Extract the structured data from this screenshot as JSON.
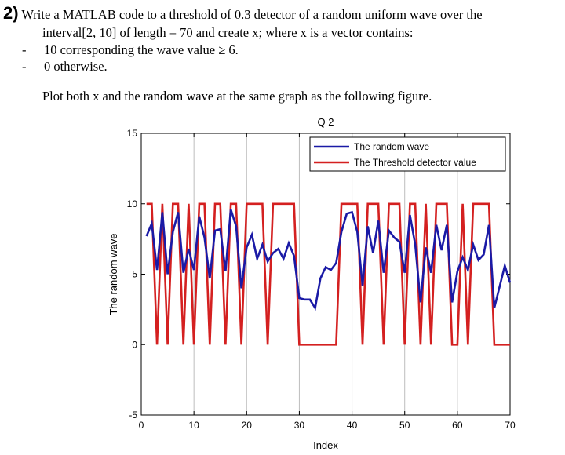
{
  "question": {
    "number": "2)",
    "line1": "Write a MATLAB code to a threshold of 0.3 detector of a random uniform wave over the",
    "line2": "interval[2, 10] of length = 70 and create x; where x is a vector contains:",
    "bullets": [
      {
        "marker": "-",
        "text": "10 corresponding the wave value ≥ 6."
      },
      {
        "marker": "-",
        "text": "0 otherwise."
      }
    ],
    "instruction": "Plot both x and the random wave at the same graph as the following figure."
  },
  "chart_data": {
    "type": "line",
    "title": "Q 2",
    "xlabel": "Index",
    "ylabel": "The random wave",
    "xlim": [
      0,
      70
    ],
    "ylim": [
      -5,
      15
    ],
    "xticks": [
      0,
      10,
      20,
      30,
      40,
      50,
      60,
      70
    ],
    "yticks": [
      -5,
      0,
      5,
      10,
      15
    ],
    "grid": "x-only",
    "legend_position": "top-right",
    "colors": {
      "wave": "#1a1aa6",
      "threshold": "#d42020"
    },
    "series": [
      {
        "name": "The random wave",
        "x": [
          1,
          2,
          3,
          4,
          5,
          6,
          7,
          8,
          9,
          10,
          11,
          12,
          13,
          14,
          15,
          16,
          17,
          18,
          19,
          20,
          21,
          22,
          23,
          24,
          25,
          26,
          27,
          28,
          29,
          30,
          31,
          32,
          33,
          34,
          35,
          36,
          37,
          38,
          39,
          40,
          41,
          42,
          43,
          44,
          45,
          46,
          47,
          48,
          49,
          50,
          51,
          52,
          53,
          54,
          55,
          56,
          57,
          58,
          59,
          60,
          61,
          62,
          63,
          64,
          65,
          66,
          67,
          68,
          69,
          70
        ],
        "values": [
          7.7,
          8.6,
          5.3,
          9.4,
          5.0,
          8.0,
          9.4,
          5.1,
          6.8,
          5.3,
          9.1,
          7.6,
          4.7,
          8.1,
          8.2,
          5.2,
          9.6,
          8.4,
          4.0,
          6.9,
          7.8,
          6.1,
          7.1,
          5.9,
          6.5,
          6.8,
          6.1,
          7.2,
          6.3,
          3.3,
          3.2,
          3.2,
          2.6,
          4.7,
          5.5,
          5.3,
          5.8,
          8.0,
          9.3,
          9.4,
          8.0,
          4.2,
          8.4,
          6.5,
          8.8,
          5.1,
          8.1,
          7.6,
          7.3,
          5.1,
          9.2,
          7.1,
          3.0,
          6.9,
          5.1,
          8.5,
          6.7,
          8.5,
          3.0,
          5.2,
          6.2,
          5.3,
          7.1,
          6.0,
          6.4,
          8.5,
          2.6,
          4.1,
          5.6,
          4.4
        ]
      },
      {
        "name": "The Threshold detector value",
        "x": [
          1,
          2,
          3,
          4,
          5,
          6,
          7,
          8,
          9,
          10,
          11,
          12,
          13,
          14,
          15,
          16,
          17,
          18,
          19,
          20,
          21,
          22,
          23,
          24,
          25,
          26,
          27,
          28,
          29,
          30,
          31,
          32,
          33,
          34,
          35,
          36,
          37,
          38,
          39,
          40,
          41,
          42,
          43,
          44,
          45,
          46,
          47,
          48,
          49,
          50,
          51,
          52,
          53,
          54,
          55,
          56,
          57,
          58,
          59,
          60,
          61,
          62,
          63,
          64,
          65,
          66,
          67,
          68,
          69,
          70
        ],
        "values": [
          10,
          10,
          0,
          10,
          0,
          10,
          10,
          0,
          10,
          0,
          10,
          10,
          0,
          10,
          10,
          0,
          10,
          10,
          0,
          10,
          10,
          10,
          10,
          0,
          10,
          10,
          10,
          10,
          10,
          0,
          0,
          0,
          0,
          0,
          0,
          0,
          0,
          10,
          10,
          10,
          10,
          0,
          10,
          10,
          10,
          0,
          10,
          10,
          10,
          0,
          10,
          10,
          0,
          10,
          0,
          10,
          10,
          10,
          0,
          0,
          10,
          0,
          10,
          10,
          10,
          10,
          0,
          0,
          0,
          0
        ]
      }
    ]
  }
}
